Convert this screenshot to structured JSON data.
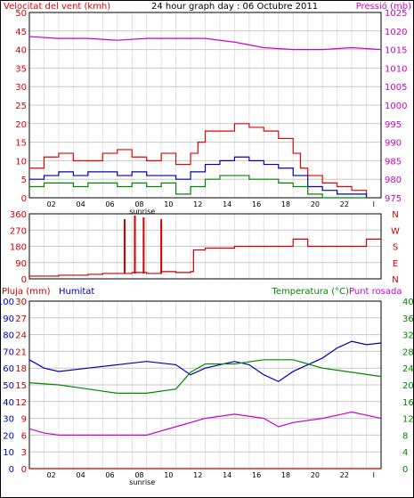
{
  "colors": {
    "wind": "#e00000",
    "pressure": "#cc00cc",
    "gust": "#ee0000",
    "avg_wind": "#0000bb",
    "min_wind": "#008800",
    "direction": "#cc0000",
    "rain": "#cc0000",
    "humidity": "#0000bb",
    "temperature": "#008800",
    "dewpoint": "#cc00cc",
    "frame": "#000000",
    "grid": "#c8c8c8"
  },
  "chart_data": [
    {
      "type": "line",
      "title": "24 hour graph day : 06 Octubre 2011",
      "ylabel_left": "Velocitat del vent (kmh)",
      "ylabel_right": "Pressió (mb)",
      "ylim_left": [
        0,
        50
      ],
      "yticks_left": [
        "0",
        "5",
        "10",
        "15",
        "20",
        "25",
        "30",
        "35",
        "40",
        "45",
        "50"
      ],
      "ylim_right": [
        975,
        1025
      ],
      "yticks_right": [
        "975",
        "980",
        "985",
        "990",
        "995",
        "1000",
        "1005",
        "1010",
        "1015",
        "1020",
        "1025"
      ],
      "xlim": [
        0,
        24
      ],
      "xticks": [
        "02",
        "04",
        "06",
        "08",
        "10",
        "12",
        "14",
        "16",
        "18",
        "20",
        "22",
        "I"
      ],
      "x_marker": "sunrise",
      "grid": true,
      "series": [
        {
          "key": "gust",
          "x": [
            0,
            1,
            2,
            3,
            4,
            5,
            6,
            7,
            8,
            9,
            10,
            11,
            11.5,
            12,
            13,
            14,
            15,
            16,
            17,
            18,
            18.5,
            19,
            20,
            21,
            22,
            23
          ],
          "y": [
            8,
            11,
            12,
            10,
            10,
            12,
            13,
            11,
            10,
            12,
            9,
            12,
            15,
            18,
            18,
            20,
            19,
            18,
            16,
            12,
            8,
            6,
            4,
            3,
            2,
            0
          ]
        },
        {
          "key": "avg_wind",
          "x": [
            0,
            1,
            2,
            3,
            4,
            5,
            6,
            7,
            8,
            9,
            10,
            11,
            12,
            13,
            14,
            15,
            16,
            17,
            18,
            19,
            20,
            21,
            22,
            23
          ],
          "y": [
            5,
            6,
            7,
            6,
            7,
            7,
            6,
            7,
            6,
            6,
            5,
            7,
            9,
            10,
            11,
            10,
            9,
            8,
            6,
            3,
            2,
            1,
            1,
            0
          ]
        },
        {
          "key": "min_wind",
          "x": [
            0,
            1,
            2,
            3,
            4,
            5,
            6,
            7,
            8,
            9,
            10,
            11,
            12,
            13,
            14,
            15,
            16,
            17,
            18,
            19,
            20,
            21,
            22,
            23
          ],
          "y": [
            3,
            4,
            4,
            3,
            4,
            4,
            3,
            4,
            3,
            4,
            1,
            3,
            5,
            6,
            6,
            5,
            5,
            4,
            3,
            1,
            0,
            0,
            0,
            0
          ]
        },
        {
          "key": "pressure",
          "x": [
            0,
            2,
            4,
            6,
            8,
            10,
            12,
            14,
            16,
            18,
            20,
            22,
            24
          ],
          "y": [
            1018.5,
            1018,
            1018,
            1017.5,
            1018,
            1018,
            1018,
            1017,
            1015.5,
            1015,
            1015,
            1015.5,
            1015
          ]
        }
      ]
    },
    {
      "type": "line",
      "ylim": [
        0,
        360
      ],
      "yticks": [
        "0",
        "90",
        "180",
        "270",
        "360"
      ],
      "right_labels": [
        "N",
        "W",
        "S",
        "E",
        "N"
      ],
      "series": [
        {
          "key": "direction",
          "x": [
            0,
            2,
            4,
            5,
            6,
            7,
            8,
            9,
            10,
            11,
            11.2,
            12,
            14,
            16,
            18,
            19,
            20,
            22,
            23,
            24
          ],
          "y": [
            15,
            20,
            25,
            30,
            30,
            35,
            30,
            40,
            35,
            40,
            160,
            170,
            180,
            180,
            220,
            180,
            180,
            180,
            220,
            220
          ]
        }
      ],
      "spikes": [
        [
          6.5,
          330
        ],
        [
          7.2,
          350
        ],
        [
          7.8,
          340
        ],
        [
          9,
          330
        ]
      ]
    },
    {
      "type": "line",
      "legend": [
        "Pluja (mm)",
        "Humitat",
        "Temperatura (°C)",
        "Punt rosada"
      ],
      "ylim_left": [
        0,
        30
      ],
      "yticks_left": [
        "0",
        "3",
        "6",
        "9",
        "12",
        "15",
        "18",
        "21",
        "24",
        "27",
        "30"
      ],
      "yticks_humidity": [
        "0",
        "10",
        "20",
        "30",
        "40",
        "50",
        "60",
        "70",
        "80",
        "90",
        "100"
      ],
      "ylim_right": [
        0,
        40
      ],
      "yticks_right": [
        "0",
        "4",
        "8",
        "12",
        "16",
        "20",
        "24",
        "28",
        "32",
        "36",
        "40"
      ],
      "xlim": [
        0,
        24
      ],
      "xticks": [
        "02",
        "04",
        "06",
        "08",
        "10",
        "12",
        "14",
        "16",
        "18",
        "20",
        "22",
        "I"
      ],
      "x_marker": "sunrise",
      "series": [
        {
          "key": "humidity",
          "x": [
            0,
            1,
            2,
            4,
            6,
            8,
            10,
            11,
            12,
            14,
            15,
            16,
            17,
            18,
            19,
            20,
            21,
            22,
            23,
            24
          ],
          "y": [
            65,
            60,
            58,
            60,
            62,
            64,
            62,
            56,
            60,
            64,
            62,
            56,
            52,
            58,
            62,
            66,
            72,
            76,
            74,
            75
          ]
        },
        {
          "key": "temperature",
          "x": [
            0,
            2,
            4,
            6,
            8,
            10,
            11,
            12,
            14,
            16,
            18,
            19,
            20,
            22,
            24
          ],
          "y": [
            20.5,
            20,
            19,
            18,
            18,
            19,
            23,
            25,
            25,
            26,
            26,
            25,
            24,
            23,
            22
          ]
        },
        {
          "key": "dewpoint",
          "x": [
            0,
            1,
            2,
            4,
            6,
            8,
            10,
            12,
            14,
            16,
            17,
            18,
            20,
            22,
            24
          ],
          "y": [
            9.5,
            8.5,
            8,
            8,
            8,
            8,
            10,
            12,
            13,
            12,
            10,
            11,
            12,
            13.5,
            12
          ]
        },
        {
          "key": "rain",
          "x": [
            0,
            24
          ],
          "y": [
            0,
            0
          ]
        }
      ]
    }
  ]
}
